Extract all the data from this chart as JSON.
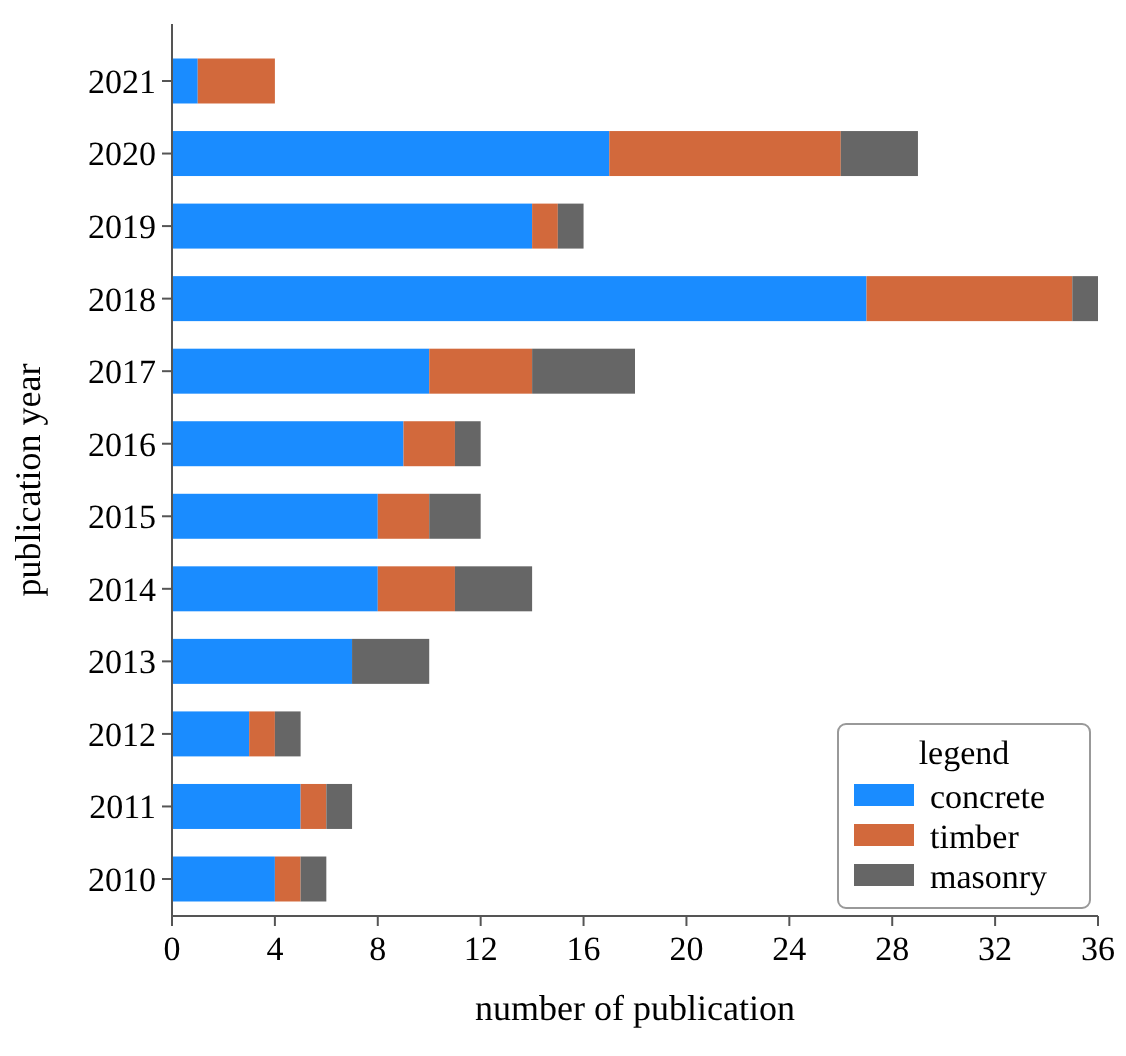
{
  "chart_data": {
    "type": "bar",
    "orientation": "horizontal",
    "stacked": true,
    "xlabel": "number of publication",
    "ylabel": "publication year",
    "categories": [
      "2021",
      "2020",
      "2019",
      "2018",
      "2017",
      "2016",
      "2015",
      "2014",
      "2013",
      "2012",
      "2011",
      "2010"
    ],
    "series": [
      {
        "name": "concrete",
        "color": "#1a8cff",
        "values": [
          1,
          17,
          14,
          27,
          10,
          9,
          8,
          8,
          7,
          3,
          5,
          4
        ]
      },
      {
        "name": "timber",
        "color": "#d2693c",
        "values": [
          3,
          9,
          1,
          8,
          4,
          2,
          2,
          3,
          0,
          1,
          1,
          1
        ]
      },
      {
        "name": "masonry",
        "color": "#666666",
        "values": [
          0,
          3,
          1,
          1,
          4,
          1,
          2,
          3,
          3,
          1,
          1,
          1
        ]
      }
    ],
    "xlim": [
      0,
      36
    ],
    "xticks": [
      0,
      4,
      8,
      12,
      16,
      20,
      24,
      28,
      32,
      36
    ],
    "legend": "bottom right",
    "legend_title": "legend",
    "grid": false
  }
}
